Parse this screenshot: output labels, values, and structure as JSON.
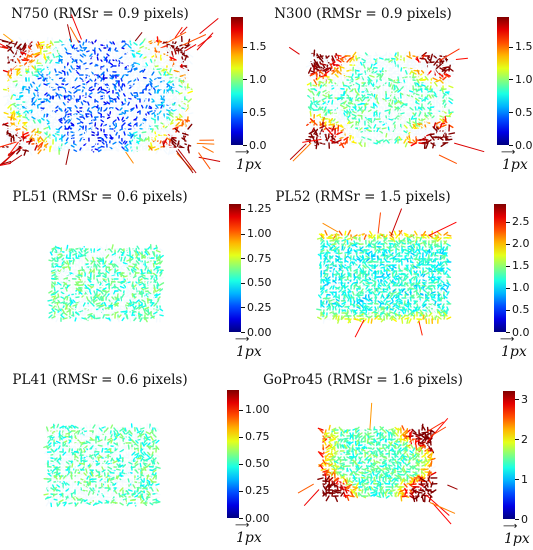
{
  "chart_data": [
    {
      "type": "heatmap",
      "title": "N750 (RMSr = 0.9 pixels)",
      "colorbar_ticks": [
        "0.0",
        "0.5",
        "1.0",
        "1.5"
      ],
      "colorbar_max": 1.95,
      "unit_label": "1px",
      "pattern": {
        "speckle": 0.6,
        "rings": 0,
        "hot_corners": [
          0,
          1,
          2,
          3
        ],
        "hot_edges": "left-right",
        "base_level": 0.25,
        "long_vectors": 38
      }
    },
    {
      "type": "heatmap",
      "title": "N300 (RMSr = 0.9 pixels)",
      "colorbar_ticks": [
        "0.0",
        "0.5",
        "1.0",
        "1.5"
      ],
      "colorbar_max": 1.95,
      "unit_label": "1px",
      "pattern": {
        "speckle": 0.35,
        "rings": 2,
        "hot_corners": [
          0,
          1,
          2,
          3
        ],
        "hot_edges": "none",
        "base_level": 0.45,
        "long_vectors": 8
      }
    },
    {
      "type": "heatmap",
      "title": "PL51 (RMSr = 0.6 pixels)",
      "colorbar_ticks": [
        "0.00",
        "0.25",
        "0.50",
        "0.75",
        "1.00",
        "1.25"
      ],
      "colorbar_max": 1.3,
      "unit_label": "1px",
      "pattern": {
        "speckle": 0.3,
        "rings": 1,
        "hot_corners": [],
        "hot_edges": "none",
        "base_level": 0.45,
        "long_vectors": 0
      }
    },
    {
      "type": "heatmap",
      "title": "PL52 (RMSr = 1.5 pixels)",
      "colorbar_ticks": [
        "0.0",
        "0.5",
        "1.0",
        "1.5",
        "2.0",
        "2.5"
      ],
      "colorbar_max": 2.9,
      "unit_label": "1px",
      "pattern": {
        "speckle": 0.1,
        "rings": 0,
        "hot_corners": [],
        "hot_edges": "top-bottom",
        "base_level": 0.4,
        "long_vectors": 6
      }
    },
    {
      "type": "heatmap",
      "title": "PL41 (RMSr = 0.6 pixels)",
      "colorbar_ticks": [
        "0.00",
        "0.25",
        "0.50",
        "0.75",
        "1.00"
      ],
      "colorbar_max": 1.18,
      "unit_label": "1px",
      "pattern": {
        "speckle": 0.35,
        "rings": 1,
        "hot_corners": [],
        "hot_edges": "none",
        "base_level": 0.45,
        "long_vectors": 0
      }
    },
    {
      "type": "heatmap",
      "title": "GoPro45 (RMSr = 1.6 pixels)",
      "colorbar_ticks": [
        "0",
        "1",
        "2",
        "3"
      ],
      "colorbar_max": 3.2,
      "unit_label": "1px",
      "pattern": {
        "speckle": 0.05,
        "rings": 0,
        "hot_corners": [
          1,
          2,
          3
        ],
        "hot_edges": "left-right",
        "base_level": 0.45,
        "long_vectors": 10
      }
    }
  ]
}
